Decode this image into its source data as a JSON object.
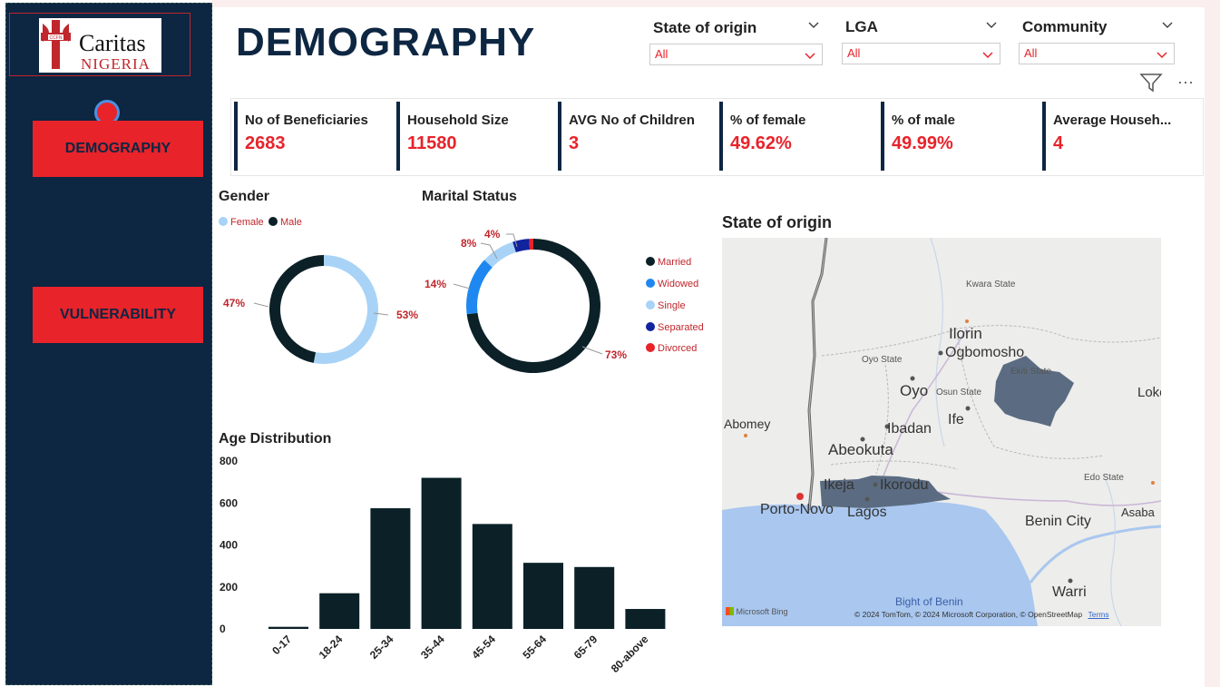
{
  "header": {
    "title": "DEMOGRAPHY"
  },
  "logo": {
    "name": "Caritas",
    "sub": "NIGERIA",
    "badge": "CCFN"
  },
  "sidebar": {
    "items": [
      {
        "label": "DEMOGRAPHY"
      },
      {
        "label": "VULNERABILITY"
      }
    ]
  },
  "filters": [
    {
      "label": "State of origin",
      "value": "All"
    },
    {
      "label": "LGA",
      "value": "All"
    },
    {
      "label": "Community",
      "value": "All"
    }
  ],
  "toolbar": {
    "filter_icon": "filter-icon",
    "more_icon": "more-options-icon",
    "more_glyph": "···"
  },
  "kpis": [
    {
      "label": "No of Beneficiaries",
      "value": "2683"
    },
    {
      "label": "Household Size",
      "value": "11580"
    },
    {
      "label": "AVG No of Children",
      "value": "3"
    },
    {
      "label": "% of female",
      "value": "49.62%"
    },
    {
      "label": "% of male",
      "value": "49.99%"
    },
    {
      "label": "Average Househ...",
      "value": "4"
    }
  ],
  "colors": {
    "accent": "#e8232a",
    "navy": "#0d2642",
    "bar": "#0b2027",
    "female": "#a8d3f7",
    "widowed": "#1e88f0",
    "single": "#a8d3f7",
    "separated": "#12239e",
    "divorced": "#e8232a"
  },
  "gender": {
    "title": "Gender",
    "legend": [
      "Female",
      "Male"
    ],
    "labels": {
      "female_pct": "53%",
      "male_pct": "47%"
    }
  },
  "marital": {
    "title": "Marital Status",
    "legend": [
      "Married",
      "Widowed",
      "Single",
      "Separated",
      "Divorced"
    ],
    "labels": {
      "married": "73%",
      "widowed": "14%",
      "single": "8%",
      "separated": "4%"
    }
  },
  "map": {
    "title": "State of origin",
    "labels": {
      "ilorin": "Ilorin",
      "ogbomosho": "Ogbomosho",
      "oyo": "Oyo",
      "ife": "Ife",
      "ibadan": "Ibadan",
      "abeokuta": "Abeokuta",
      "ikeja": "Ikeja",
      "ikorodu": "Ikorodu",
      "lagos": "Lagos",
      "porto_novo": "Porto-Novo",
      "abomey": "Abomey",
      "benin_city": "Benin City",
      "asaba": "Asaba",
      "warri": "Warri",
      "loko": "Loko",
      "bight": "Bight of Benin",
      "kwara": "Kwara State",
      "oyo_state": "Oyo State",
      "osun_state": "Osun State",
      "ekiti_state": "Ekiti State",
      "edo_state": "Edo State"
    },
    "brand": "Microsoft Bing",
    "credit": "© 2024 TomTom, © 2024 Microsoft Corporation, © OpenStreetMap",
    "terms": "Terms"
  },
  "chart_data": [
    {
      "type": "pie",
      "title": "Gender",
      "series": [
        {
          "name": "Female",
          "value": 53
        },
        {
          "name": "Male",
          "value": 47
        }
      ],
      "legend_position": "top-left"
    },
    {
      "type": "pie",
      "title": "Marital Status",
      "series": [
        {
          "name": "Married",
          "value": 73
        },
        {
          "name": "Widowed",
          "value": 14
        },
        {
          "name": "Single",
          "value": 8
        },
        {
          "name": "Separated",
          "value": 4
        },
        {
          "name": "Divorced",
          "value": 1
        }
      ],
      "legend_position": "right"
    },
    {
      "type": "bar",
      "title": "Age Distribution",
      "categories": [
        "0-17",
        "18-24",
        "25-34",
        "35-44",
        "45-54",
        "55-64",
        "65-79",
        "80-above"
      ],
      "values": [
        10,
        170,
        575,
        720,
        500,
        315,
        295,
        95
      ],
      "yticks": [
        "800",
        "600",
        "400",
        "200",
        "0"
      ],
      "ylim": [
        0,
        800
      ],
      "grid": false
    }
  ]
}
